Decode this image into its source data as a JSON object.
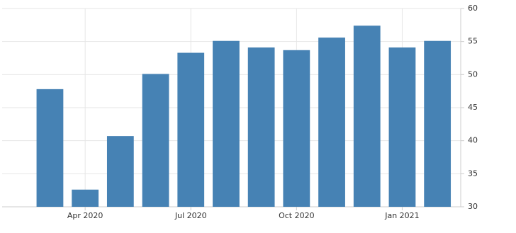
{
  "chart_data": {
    "type": "bar",
    "categories": [
      null,
      "Apr 2020",
      null,
      null,
      "Jul 2020",
      null,
      null,
      "Oct 2020",
      null,
      null,
      "Jan 2021",
      null
    ],
    "values": [
      47.8,
      32.6,
      40.7,
      50.1,
      53.3,
      55.1,
      54.1,
      53.7,
      55.6,
      57.4,
      54.1,
      55.1
    ],
    "color": "#4682b4",
    "ylim": [
      30,
      60
    ],
    "yticks": [
      30,
      35,
      40,
      45,
      50,
      55,
      60
    ],
    "grid": true
  }
}
